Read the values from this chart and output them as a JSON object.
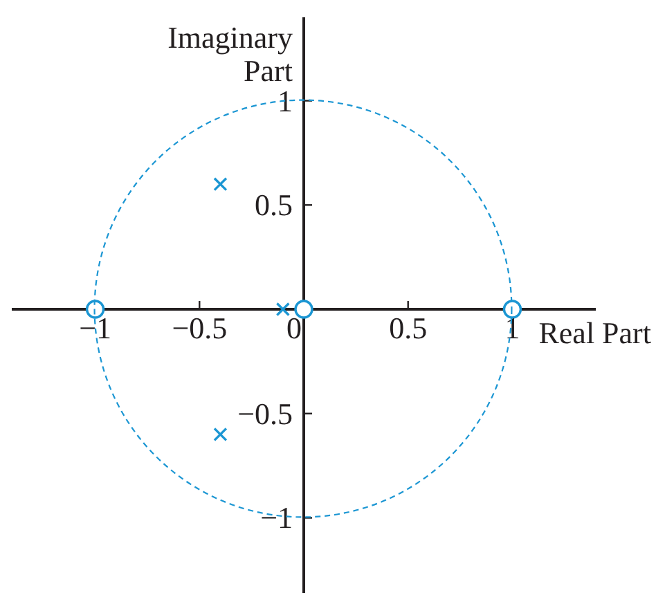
{
  "chart_data": {
    "type": "scatter",
    "xlabel": "Real Part",
    "ylabel": "Imaginary Part",
    "xlim": [
      -1.4,
      1.4
    ],
    "ylim": [
      -1.36,
      1.4
    ],
    "xticks": [
      {
        "value": -1,
        "label": "−1"
      },
      {
        "value": -0.5,
        "label": "−0.5"
      },
      {
        "value": 0,
        "label": "0"
      },
      0.5,
      1
    ],
    "yticks": [
      {
        "value": -1,
        "label": "−1"
      },
      {
        "value": -0.5,
        "label": "−0.5"
      },
      0.5,
      1
    ],
    "series": [
      {
        "color": "#1b96d3",
        "marker": "cross",
        "x": [
          -0.4,
          -0.4,
          -0.1
        ],
        "values": [
          0.6,
          -0.6,
          0
        ]
      },
      {
        "color": "#1b96d3",
        "marker": "circle",
        "x": [
          -1,
          0,
          1
        ],
        "values": [
          0,
          0,
          0
        ]
      }
    ]
  }
}
